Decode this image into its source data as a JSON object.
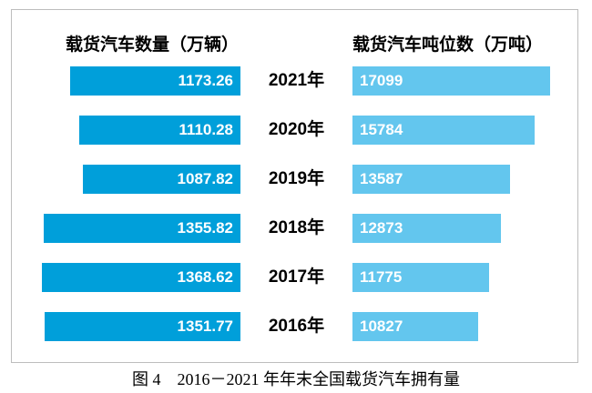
{
  "chart_data": {
    "type": "bar",
    "orientation": "horizontal-diverging",
    "categories": [
      "2021年",
      "2020年",
      "2019年",
      "2018年",
      "2017年",
      "2016年"
    ],
    "series": [
      {
        "name": "载货汽车数量（万辆）",
        "values": [
          1173.26,
          1110.28,
          1087.82,
          1355.82,
          1368.62,
          1351.77
        ],
        "color": "#009FDA",
        "align": "right",
        "value_format": "2-decimals"
      },
      {
        "name": "载货汽车吨位数（万吨）",
        "values": [
          17099,
          15784,
          13587,
          12873,
          11775,
          10827
        ],
        "color": "#63C6EE",
        "align": "left",
        "value_format": "integer"
      }
    ],
    "title": "图 4　2016－2021 年年末全国载货汽车拥有量",
    "legend_position": "column-headers-top",
    "grid": false,
    "value_labels": "inside-bars-white-bold",
    "xlim_left_series": [
      0,
      1400
    ],
    "xlim_right_series": [
      0,
      17500
    ]
  },
  "headers": {
    "left": "载货汽车数量（万辆）",
    "right": "载货汽车吨位数（万吨）"
  },
  "caption": "图 4　2016－2021 年年末全国载货汽车拥有量"
}
